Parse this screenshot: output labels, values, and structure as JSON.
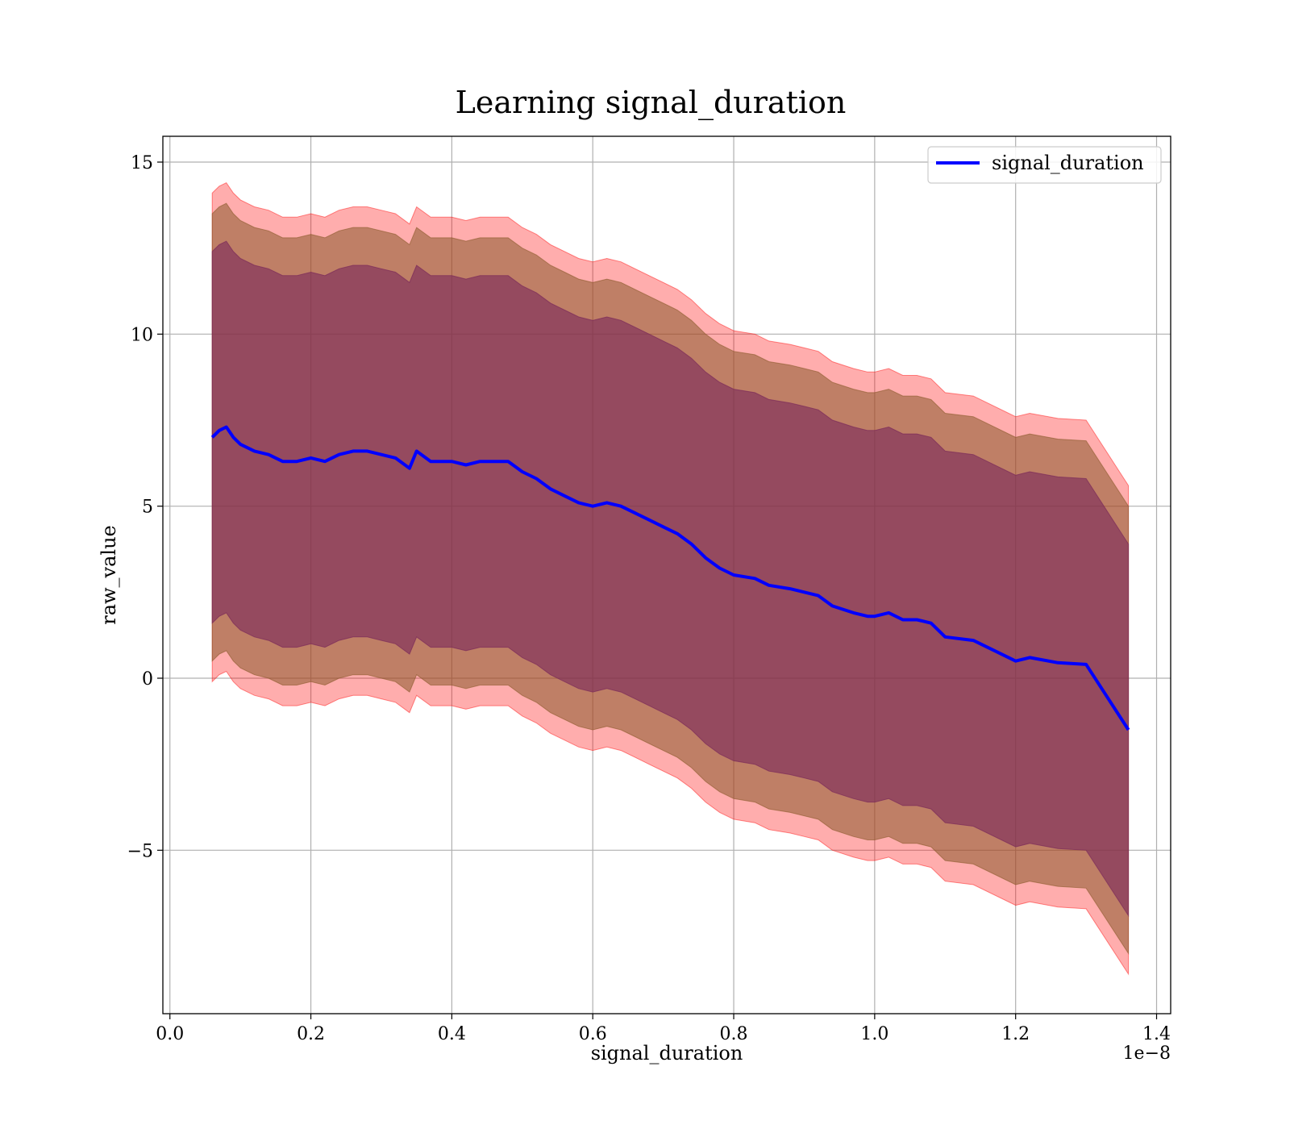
{
  "chart_data": {
    "type": "line",
    "title": "Learning signal_duration",
    "xlabel": "signal_duration",
    "ylabel": "raw_value",
    "x_offset_label": "1e−8",
    "xlim": [
      -0.01,
      1.42
    ],
    "ylim": [
      -9.75,
      15.75
    ],
    "xticks": [
      0.0,
      0.2,
      0.4,
      0.6,
      0.8,
      1.0,
      1.2,
      1.4
    ],
    "xtick_labels": [
      "0.0",
      "0.2",
      "0.4",
      "0.6",
      "0.8",
      "1.0",
      "1.2",
      "1.4"
    ],
    "yticks": [
      -5,
      0,
      5,
      10,
      15
    ],
    "ytick_labels": [
      "−5",
      "0",
      "5",
      "10",
      "15"
    ],
    "grid": true,
    "legend_position": "upper-right",
    "colors": {
      "line": "#0000ff",
      "band_outer": "#ff0000",
      "band_middle": "#8b5a2b",
      "band_inner": "#7a2a5a"
    },
    "series": [
      {
        "name": "signal_duration",
        "x": [
          0.06,
          0.07,
          0.08,
          0.09,
          0.1,
          0.12,
          0.14,
          0.16,
          0.18,
          0.2,
          0.22,
          0.24,
          0.26,
          0.28,
          0.3,
          0.32,
          0.34,
          0.35,
          0.37,
          0.4,
          0.42,
          0.44,
          0.46,
          0.48,
          0.5,
          0.52,
          0.54,
          0.56,
          0.58,
          0.6,
          0.62,
          0.64,
          0.66,
          0.68,
          0.7,
          0.72,
          0.74,
          0.76,
          0.78,
          0.8,
          0.83,
          0.85,
          0.88,
          0.9,
          0.92,
          0.94,
          0.97,
          0.99,
          1.0,
          1.02,
          1.04,
          1.06,
          1.08,
          1.1,
          1.14,
          1.2,
          1.22,
          1.26,
          1.3,
          1.36
        ],
        "y": [
          7.0,
          7.2,
          7.3,
          7.0,
          6.8,
          6.6,
          6.5,
          6.3,
          6.3,
          6.4,
          6.3,
          6.5,
          6.6,
          6.6,
          6.5,
          6.4,
          6.1,
          6.6,
          6.3,
          6.3,
          6.2,
          6.3,
          6.3,
          6.3,
          6.0,
          5.8,
          5.5,
          5.3,
          5.1,
          5.0,
          5.1,
          5.0,
          4.8,
          4.6,
          4.4,
          4.2,
          3.9,
          3.5,
          3.2,
          3.0,
          2.9,
          2.7,
          2.6,
          2.5,
          2.4,
          2.1,
          1.9,
          1.8,
          1.8,
          1.9,
          1.7,
          1.7,
          1.6,
          1.2,
          1.1,
          0.5,
          0.6,
          0.45,
          0.4,
          -1.5
        ],
        "band_inner_halfwidth": [
          5.4,
          5.4,
          5.4,
          5.4,
          5.4,
          5.4,
          5.4,
          5.4,
          5.4,
          5.4,
          5.4,
          5.4,
          5.4,
          5.4,
          5.4,
          5.4,
          5.4,
          5.4,
          5.4,
          5.4,
          5.4,
          5.4,
          5.4,
          5.4,
          5.4,
          5.4,
          5.4,
          5.4,
          5.4,
          5.4,
          5.4,
          5.4,
          5.4,
          5.4,
          5.4,
          5.4,
          5.4,
          5.4,
          5.4,
          5.4,
          5.4,
          5.4,
          5.4,
          5.4,
          5.4,
          5.4,
          5.4,
          5.4,
          5.4,
          5.4,
          5.4,
          5.4,
          5.4,
          5.4,
          5.4,
          5.4,
          5.4,
          5.4,
          5.4,
          5.4
        ],
        "band_middle_halfwidth": [
          6.5,
          6.5,
          6.5,
          6.5,
          6.5,
          6.5,
          6.5,
          6.5,
          6.5,
          6.5,
          6.5,
          6.5,
          6.5,
          6.5,
          6.5,
          6.5,
          6.5,
          6.5,
          6.5,
          6.5,
          6.5,
          6.5,
          6.5,
          6.5,
          6.5,
          6.5,
          6.5,
          6.5,
          6.5,
          6.5,
          6.5,
          6.5,
          6.5,
          6.5,
          6.5,
          6.5,
          6.5,
          6.5,
          6.5,
          6.5,
          6.5,
          6.5,
          6.5,
          6.5,
          6.5,
          6.5,
          6.5,
          6.5,
          6.5,
          6.5,
          6.5,
          6.5,
          6.5,
          6.5,
          6.5,
          6.5,
          6.5,
          6.5,
          6.5,
          6.5
        ],
        "band_outer_halfwidth": [
          7.1,
          7.1,
          7.1,
          7.1,
          7.1,
          7.1,
          7.1,
          7.1,
          7.1,
          7.1,
          7.1,
          7.1,
          7.1,
          7.1,
          7.1,
          7.1,
          7.1,
          7.1,
          7.1,
          7.1,
          7.1,
          7.1,
          7.1,
          7.1,
          7.1,
          7.1,
          7.1,
          7.1,
          7.1,
          7.1,
          7.1,
          7.1,
          7.1,
          7.1,
          7.1,
          7.1,
          7.1,
          7.1,
          7.1,
          7.1,
          7.1,
          7.1,
          7.1,
          7.1,
          7.1,
          7.1,
          7.1,
          7.1,
          7.1,
          7.1,
          7.1,
          7.1,
          7.1,
          7.1,
          7.1,
          7.1,
          7.1,
          7.1,
          7.1,
          7.1
        ]
      }
    ]
  }
}
